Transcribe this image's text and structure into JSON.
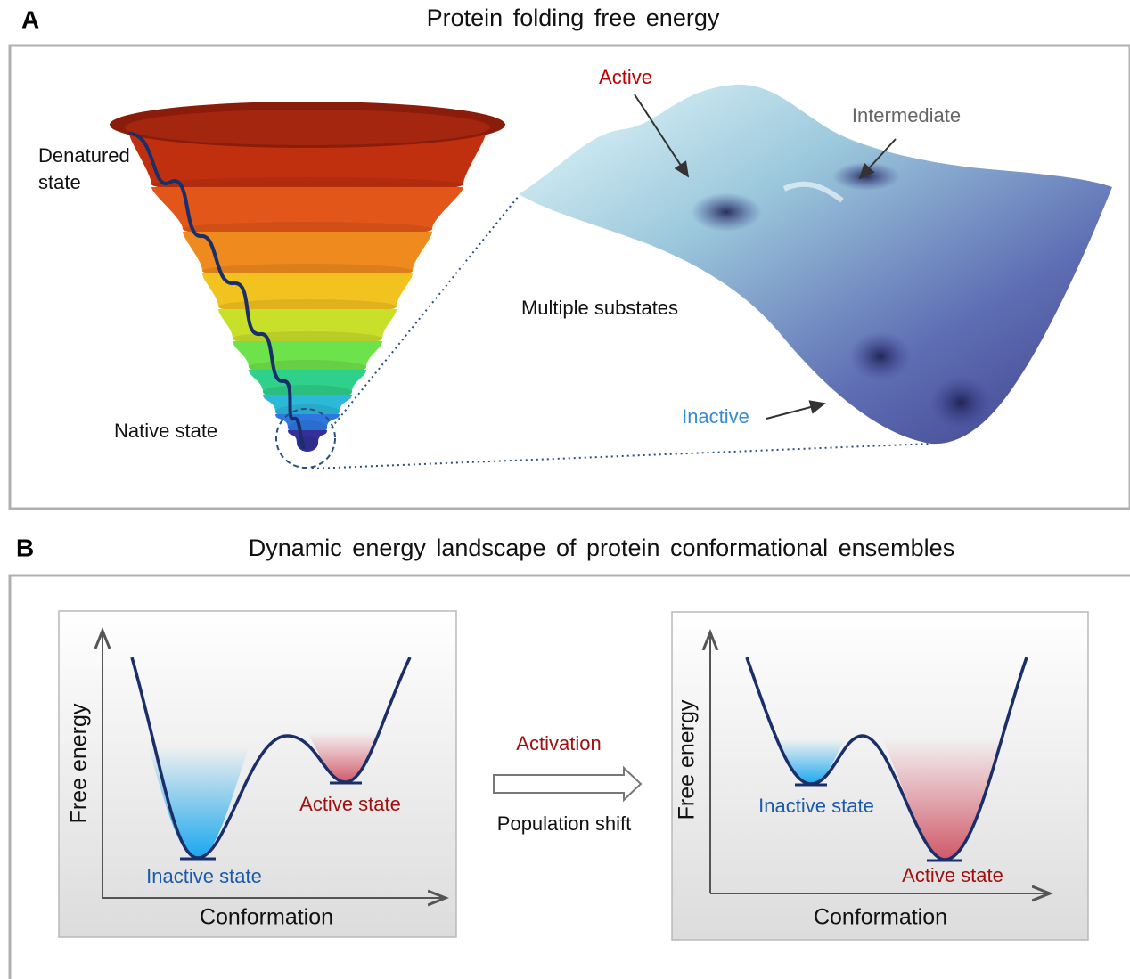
{
  "panel_a": {
    "label": "A",
    "title": "Protein folding free energy",
    "denatured": [
      "Denatured",
      "state"
    ],
    "native": "Native state",
    "active": "Active",
    "intermediate": "Intermediate",
    "substates": "Multiple substates",
    "inactive": "Inactive"
  },
  "panel_b": {
    "label": "B",
    "title": "Dynamic energy landscape of protein conformational ensembles",
    "left": {
      "y_label": "Free energy",
      "x_label": "Conformation",
      "inactive": "Inactive state",
      "active": "Active state"
    },
    "middle": {
      "top": "Activation",
      "bottom": "Population shift"
    },
    "right": {
      "y_label": "Free energy",
      "x_label": "Conformation",
      "inactive": "Inactive state",
      "active": "Active state"
    }
  }
}
